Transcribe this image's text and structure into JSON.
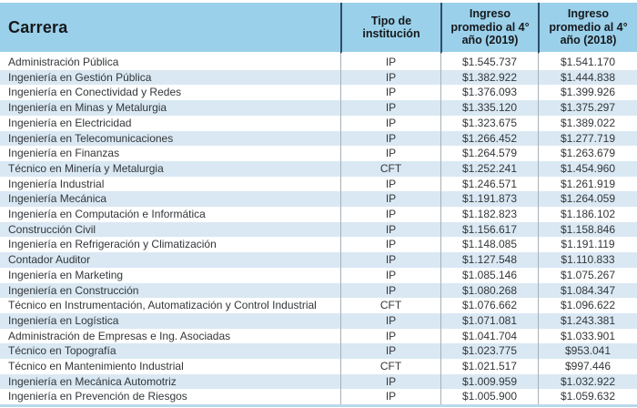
{
  "colors": {
    "header_background": "#9bd0ea",
    "header_divider": "#2e4d68",
    "row_alt_background": "#d9e8f3",
    "row_background": "#ffffff",
    "body_divider": "#a6b0b6",
    "bottom_line": "#b9d9ec",
    "header_text": "#15181b",
    "body_text": "#333639"
  },
  "chart_data": {
    "type": "table",
    "columns": [
      {
        "key": "carrera",
        "label": "Carrera"
      },
      {
        "key": "tipo_institucion",
        "label": "Tipo de institución"
      },
      {
        "key": "ingreso_2019",
        "label": "Ingreso promedio al 4° año (2019)"
      },
      {
        "key": "ingreso_2018",
        "label": "Ingreso promedio al 4° año (2018)"
      }
    ],
    "rows": [
      {
        "carrera": "Administración Pública",
        "tipo_institucion": "IP",
        "ingreso_2019": "$1.545.737",
        "ingreso_2018": "$1.541.170"
      },
      {
        "carrera": "Ingeniería en Gestión Pública",
        "tipo_institucion": "IP",
        "ingreso_2019": "$1.382.922",
        "ingreso_2018": "$1.444.838"
      },
      {
        "carrera": "Ingeniería en Conectividad y Redes",
        "tipo_institucion": "IP",
        "ingreso_2019": "$1.376.093",
        "ingreso_2018": "$1.399.926"
      },
      {
        "carrera": "Ingeniería en Minas y Metalurgia",
        "tipo_institucion": "IP",
        "ingreso_2019": "$1.335.120",
        "ingreso_2018": "$1.375.297"
      },
      {
        "carrera": "Ingeniería en Electricidad",
        "tipo_institucion": "IP",
        "ingreso_2019": "$1.323.675",
        "ingreso_2018": "$1.389.022"
      },
      {
        "carrera": "Ingeniería en Telecomunicaciones",
        "tipo_institucion": "IP",
        "ingreso_2019": "$1.266.452",
        "ingreso_2018": "$1.277.719"
      },
      {
        "carrera": "Ingeniería en Finanzas",
        "tipo_institucion": "IP",
        "ingreso_2019": "$1.264.579",
        "ingreso_2018": "$1.263.679"
      },
      {
        "carrera": "Técnico en Minería y Metalurgia",
        "tipo_institucion": "CFT",
        "ingreso_2019": "$1.252.241",
        "ingreso_2018": "$1.454.960"
      },
      {
        "carrera": "Ingeniería Industrial",
        "tipo_institucion": "IP",
        "ingreso_2019": "$1.246.571",
        "ingreso_2018": "$1.261.919"
      },
      {
        "carrera": "Ingeniería Mecánica",
        "tipo_institucion": "IP",
        "ingreso_2019": "$1.191.873",
        "ingreso_2018": "$1.264.059"
      },
      {
        "carrera": "Ingeniería en Computación e Informática",
        "tipo_institucion": "IP",
        "ingreso_2019": "$1.182.823",
        "ingreso_2018": "$1.186.102"
      },
      {
        "carrera": "Construcción Civil",
        "tipo_institucion": "IP",
        "ingreso_2019": "$1.156.617",
        "ingreso_2018": "$1.158.846"
      },
      {
        "carrera": "Ingeniería en Refrigeración y Climatización",
        "tipo_institucion": "IP",
        "ingreso_2019": "$1.148.085",
        "ingreso_2018": "$1.191.119"
      },
      {
        "carrera": "Contador Auditor",
        "tipo_institucion": "IP",
        "ingreso_2019": "$1.127.548",
        "ingreso_2018": "$1.110.833"
      },
      {
        "carrera": "Ingeniería en Marketing",
        "tipo_institucion": "IP",
        "ingreso_2019": "$1.085.146",
        "ingreso_2018": "$1.075.267"
      },
      {
        "carrera": "Ingeniería en Construcción",
        "tipo_institucion": "IP",
        "ingreso_2019": "$1.080.268",
        "ingreso_2018": "$1.084.347"
      },
      {
        "carrera": "Técnico en Instrumentación, Automatización y Control Industrial",
        "tipo_institucion": "CFT",
        "ingreso_2019": "$1.076.662",
        "ingreso_2018": "$1.096.622"
      },
      {
        "carrera": "Ingeniería en Logística",
        "tipo_institucion": "IP",
        "ingreso_2019": "$1.071.081",
        "ingreso_2018": "$1.243.381"
      },
      {
        "carrera": "Administración de Empresas e Ing. Asociadas",
        "tipo_institucion": "IP",
        "ingreso_2019": "$1.041.704",
        "ingreso_2018": "$1.033.901"
      },
      {
        "carrera": "Técnico en Topografía",
        "tipo_institucion": "IP",
        "ingreso_2019": "$1.023.775",
        "ingreso_2018": "$953.041"
      },
      {
        "carrera": "Técnico en Mantenimiento Industrial",
        "tipo_institucion": "CFT",
        "ingreso_2019": "$1.021.517",
        "ingreso_2018": "$997.446"
      },
      {
        "carrera": "Ingeniería en Mecánica Automotriz",
        "tipo_institucion": "IP",
        "ingreso_2019": "$1.009.959",
        "ingreso_2018": "$1.032.922"
      },
      {
        "carrera": "Ingeniería en Prevención de Riesgos",
        "tipo_institucion": "IP",
        "ingreso_2019": "$1.005.900",
        "ingreso_2018": "$1.059.632"
      }
    ]
  }
}
